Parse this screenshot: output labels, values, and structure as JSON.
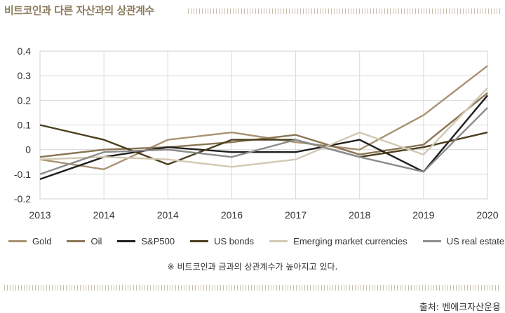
{
  "title": "비트코인과 다른 자산과의 상관계수",
  "note": "※ 비트코인과 금과의 상관계수가 높아지고 있다.",
  "source": "출처: 벤에크자산운용",
  "chart_data": {
    "type": "line",
    "categories": [
      "2013",
      "2014",
      "2014",
      "2016",
      "2017",
      "2018",
      "2019",
      "2020"
    ],
    "ylim": [
      -0.2,
      0.4
    ],
    "yticks": [
      -0.2,
      -0.1,
      0,
      0.1,
      0.2,
      0.3,
      0.4
    ],
    "ytick_labels": [
      "-0.2",
      "-0.1",
      "0",
      "0.1",
      "0.2",
      "0.3",
      "0.4"
    ],
    "grid": true,
    "xlabel": "",
    "ylabel": "",
    "legend_position": "bottom",
    "series": [
      {
        "name": "Gold",
        "color": "#a89272",
        "values": [
          -0.04,
          -0.08,
          0.04,
          0.07,
          0.03,
          0.0,
          0.14,
          0.34
        ]
      },
      {
        "name": "Oil",
        "color": "#8a7454",
        "values": [
          -0.03,
          0.0,
          0.01,
          0.03,
          0.06,
          -0.02,
          0.02,
          0.23
        ]
      },
      {
        "name": "S&P500",
        "color": "#1e1e1e",
        "values": [
          -0.12,
          -0.03,
          0.01,
          -0.01,
          -0.01,
          0.04,
          -0.09,
          0.22
        ]
      },
      {
        "name": "US bonds",
        "color": "#4a3e1e",
        "values": [
          0.1,
          0.04,
          -0.06,
          0.04,
          0.04,
          -0.03,
          0.01,
          0.07
        ]
      },
      {
        "name": "Emerging market currencies",
        "color": "#d2c8b2",
        "values": [
          -0.04,
          -0.03,
          -0.04,
          -0.07,
          -0.04,
          0.07,
          -0.02,
          0.25
        ]
      },
      {
        "name": "US real estate",
        "color": "#8c8c8c",
        "values": [
          -0.1,
          -0.01,
          0.0,
          -0.03,
          0.04,
          -0.03,
          -0.09,
          0.17
        ]
      }
    ]
  }
}
